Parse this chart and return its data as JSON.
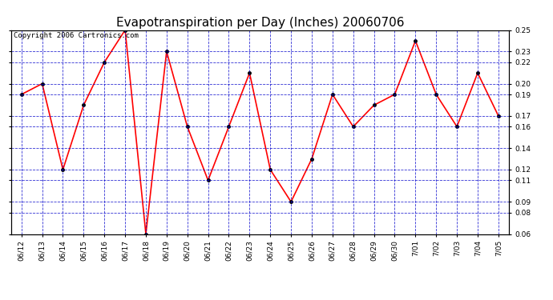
{
  "title": "Evapotranspiration per Day (Inches) 20060706",
  "copyright_text": "Copyright 2006 Cartronics.com",
  "dates": [
    "06/12",
    "06/13",
    "06/14",
    "06/15",
    "06/16",
    "06/17",
    "06/18",
    "06/19",
    "06/20",
    "06/21",
    "06/22",
    "06/23",
    "06/24",
    "06/25",
    "06/26",
    "06/27",
    "06/28",
    "06/29",
    "06/30",
    "7/01",
    "7/02",
    "7/03",
    "7/04",
    "7/05"
  ],
  "values": [
    0.19,
    0.2,
    0.12,
    0.18,
    0.22,
    0.25,
    0.06,
    0.23,
    0.16,
    0.11,
    0.16,
    0.21,
    0.12,
    0.09,
    0.13,
    0.19,
    0.16,
    0.18,
    0.19,
    0.24,
    0.19,
    0.16,
    0.21,
    0.17
  ],
  "ylim": [
    0.06,
    0.25
  ],
  "yticks": [
    0.06,
    0.08,
    0.09,
    0.11,
    0.12,
    0.14,
    0.16,
    0.17,
    0.19,
    0.2,
    0.22,
    0.23,
    0.25
  ],
  "line_color": "red",
  "marker": "o",
  "marker_color": "black",
  "marker_size": 2.5,
  "bg_color": "#ffffff",
  "plot_bg_color": "#ffffff",
  "grid_color": "#0000cc",
  "grid_style": "--",
  "grid_alpha": 0.8,
  "title_fontsize": 11,
  "copyright_fontsize": 6.5,
  "tick_fontsize": 6.5,
  "line_width": 1.2
}
